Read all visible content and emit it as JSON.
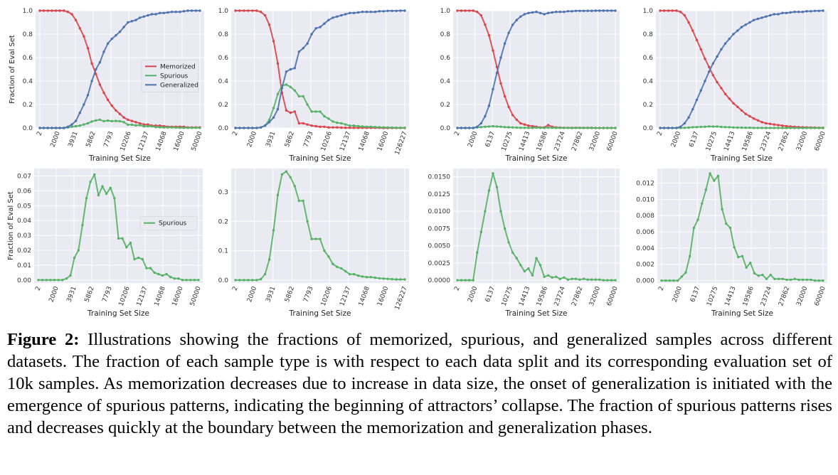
{
  "figure": {
    "label": "Figure 2:",
    "caption": " Illustrations showing the fractions of memorized, spurious, and generalized samples across different datasets. The fraction of each sample type is with respect to each data split and its corresponding evaluation set of 10k samples. As memorization decreases due to increase in data size, the onset of generalization is initiated with the emergence of spurious patterns, indicating the beginning of attractors’ collapse. The fraction of spurious patterns rises and decreases quickly at the boundary between the memorization and generalization phases."
  },
  "colors": {
    "memorized": "#d9444b",
    "spurious": "#55b165",
    "generalized": "#4c72b0",
    "panel_bg": "#eaeaf2",
    "grid": "#ffffff"
  },
  "chart_data": [
    {
      "type": "line",
      "position": "top-1",
      "xlabel": "Training Set Size",
      "ylabel": "Fraction of Eval Set",
      "ylim": [
        0,
        1
      ],
      "yticks": [
        "0.0",
        "0.2",
        "0.4",
        "0.6",
        "0.8",
        "1.0"
      ],
      "ytick_values": [
        0,
        0.2,
        0.4,
        0.6,
        0.8,
        1.0
      ],
      "xticks": [
        "2",
        "2000",
        "3931",
        "5862",
        "7793",
        "10206",
        "12137",
        "14068",
        "16000",
        "50000"
      ],
      "legend": [
        "Memorized",
        "Spurious",
        "Generalized"
      ],
      "legend_loc": "center-right",
      "series": [
        {
          "name": "Memorized",
          "values": [
            1,
            1,
            1,
            1,
            1,
            1,
            1,
            0.99,
            0.97,
            0.92,
            0.85,
            0.78,
            0.68,
            0.55,
            0.46,
            0.37,
            0.3,
            0.24,
            0.19,
            0.15,
            0.12,
            0.09,
            0.07,
            0.06,
            0.05,
            0.04,
            0.03,
            0.03,
            0.02,
            0.02,
            0.02,
            0.015,
            0.01,
            0.01,
            0.01,
            0.01,
            0.01,
            0.005,
            0.005,
            0.005,
            0.005
          ]
        },
        {
          "name": "Spurious",
          "values": [
            0,
            0,
            0,
            0,
            0,
            0,
            0,
            0.005,
            0.01,
            0.015,
            0.02,
            0.03,
            0.04,
            0.055,
            0.065,
            0.07,
            0.058,
            0.063,
            0.058,
            0.06,
            0.058,
            0.05,
            0.028,
            0.028,
            0.022,
            0.025,
            0.014,
            0.015,
            0.014,
            0.008,
            0.006,
            0.005,
            0.004,
            0.005,
            0.003,
            0.002,
            0.001,
            0.001,
            0.001,
            0.001,
            0.001
          ]
        },
        {
          "name": "Generalized",
          "values": [
            0,
            0,
            0,
            0,
            0,
            0,
            0,
            0.01,
            0.03,
            0.06,
            0.13,
            0.2,
            0.28,
            0.4,
            0.5,
            0.56,
            0.65,
            0.72,
            0.76,
            0.79,
            0.82,
            0.86,
            0.9,
            0.91,
            0.92,
            0.94,
            0.95,
            0.96,
            0.97,
            0.97,
            0.98,
            0.98,
            0.985,
            0.99,
            0.99,
            0.99,
            0.995,
            1,
            1,
            1,
            1
          ]
        }
      ]
    },
    {
      "type": "line",
      "position": "top-2",
      "xlabel": "Training Set Size",
      "ylabel": "",
      "ylim": [
        0,
        1
      ],
      "yticks": [
        "0.0",
        "0.2",
        "0.4",
        "0.6",
        "0.8",
        "1.0"
      ],
      "ytick_values": [
        0,
        0.2,
        0.4,
        0.6,
        0.8,
        1.0
      ],
      "xticks": [
        "2",
        "2000",
        "3931",
        "5862",
        "7793",
        "10206",
        "12137",
        "14068",
        "16000",
        "126227"
      ],
      "series": [
        {
          "name": "Memorized",
          "values": [
            1,
            1,
            1,
            1,
            1,
            1,
            0.99,
            0.96,
            0.88,
            0.74,
            0.55,
            0.3,
            0.15,
            0.13,
            0.14,
            0.04,
            0.04,
            0.03,
            0.02,
            0.015,
            0.01,
            0.01,
            0.005,
            0.005,
            0.005,
            0.003,
            0.002,
            0.002,
            0.001,
            0.001,
            0.001,
            0.001,
            0.001,
            0.001,
            0.001,
            0,
            0,
            0,
            0,
            0,
            0
          ]
        },
        {
          "name": "Spurious",
          "values": [
            0,
            0,
            0,
            0,
            0,
            0,
            0.005,
            0.02,
            0.07,
            0.17,
            0.29,
            0.36,
            0.37,
            0.35,
            0.32,
            0.27,
            0.27,
            0.2,
            0.14,
            0.14,
            0.14,
            0.1,
            0.08,
            0.055,
            0.045,
            0.04,
            0.03,
            0.02,
            0.02,
            0.015,
            0.012,
            0.01,
            0.01,
            0.008,
            0.006,
            0.005,
            0.004,
            0.003,
            0.002,
            0.002,
            0.002
          ]
        },
        {
          "name": "Generalized",
          "values": [
            0,
            0,
            0,
            0,
            0,
            0,
            0.005,
            0.02,
            0.05,
            0.09,
            0.16,
            0.34,
            0.48,
            0.5,
            0.51,
            0.65,
            0.68,
            0.72,
            0.8,
            0.85,
            0.86,
            0.89,
            0.92,
            0.94,
            0.95,
            0.96,
            0.97,
            0.98,
            0.98,
            0.985,
            0.99,
            0.99,
            0.99,
            0.99,
            0.995,
            0.995,
            0.998,
            0.998,
            0.998,
            1,
            1
          ]
        }
      ]
    },
    {
      "type": "line",
      "position": "top-3",
      "xlabel": "Training Set Size",
      "ylabel": "",
      "ylim": [
        0,
        1
      ],
      "yticks": [
        "0.0",
        "0.2",
        "0.4",
        "0.6",
        "0.8",
        "1.0"
      ],
      "ytick_values": [
        0,
        0.2,
        0.4,
        0.6,
        0.8,
        1.0
      ],
      "xticks": [
        "2",
        "2000",
        "6137",
        "10275",
        "14413",
        "19586",
        "23724",
        "27862",
        "32000",
        "60000"
      ],
      "series": [
        {
          "name": "Memorized",
          "values": [
            1,
            1,
            1,
            1,
            1,
            0.99,
            0.96,
            0.88,
            0.79,
            0.66,
            0.52,
            0.38,
            0.27,
            0.18,
            0.11,
            0.07,
            0.04,
            0.03,
            0.02,
            0.015,
            0.01,
            0.005,
            0.005,
            0.025,
            0.01,
            0.005,
            0.003,
            0.002,
            0.001,
            0.001,
            0.001,
            0.001,
            0.001,
            0.001,
            0.001,
            0,
            0,
            0,
            0,
            0,
            0
          ]
        },
        {
          "name": "Spurious",
          "values": [
            0,
            0,
            0,
            0,
            0,
            0.004,
            0.007,
            0.01,
            0.013,
            0.015,
            0.013,
            0.01,
            0.007,
            0.006,
            0.004,
            0.003,
            0.002,
            0.001,
            0.0015,
            0.0007,
            0.003,
            0.002,
            0.0005,
            0.003,
            0.002,
            0.0005,
            0.0006,
            0.0004,
            0.0006,
            0.0001,
            0.0004,
            0.0004,
            0.0001,
            0.0002,
            0.0002,
            0.0001,
            0.0001,
            0,
            0,
            0,
            0
          ]
        },
        {
          "name": "Generalized",
          "values": [
            0,
            0,
            0,
            0,
            0,
            0.01,
            0.04,
            0.1,
            0.19,
            0.33,
            0.47,
            0.6,
            0.72,
            0.81,
            0.88,
            0.92,
            0.95,
            0.97,
            0.98,
            0.985,
            0.99,
            0.98,
            0.97,
            0.98,
            0.985,
            0.99,
            0.99,
            0.99,
            0.995,
            0.995,
            0.998,
            0.998,
            0.998,
            0.999,
            0.999,
            1,
            1,
            1,
            1,
            1,
            1
          ]
        }
      ]
    },
    {
      "type": "line",
      "position": "top-4",
      "xlabel": "Training Set Size",
      "ylabel": "",
      "ylim": [
        0,
        1
      ],
      "yticks": [
        "0.0",
        "0.2",
        "0.4",
        "0.6",
        "0.8",
        "1.0"
      ],
      "ytick_values": [
        0,
        0.2,
        0.4,
        0.6,
        0.8,
        1.0
      ],
      "xticks": [
        "2",
        "2000",
        "6137",
        "10275",
        "14413",
        "19586",
        "23724",
        "27862",
        "32000",
        "60000"
      ],
      "series": [
        {
          "name": "Memorized",
          "values": [
            1,
            1,
            1,
            1,
            1,
            0.99,
            0.96,
            0.9,
            0.83,
            0.75,
            0.67,
            0.59,
            0.52,
            0.45,
            0.39,
            0.34,
            0.29,
            0.25,
            0.21,
            0.18,
            0.15,
            0.12,
            0.1,
            0.08,
            0.065,
            0.05,
            0.04,
            0.035,
            0.03,
            0.025,
            0.02,
            0.015,
            0.012,
            0.01,
            0.008,
            0.006,
            0.005,
            0.004,
            0.003,
            0.002,
            0.002
          ]
        },
        {
          "name": "Spurious",
          "values": [
            0,
            0,
            0,
            0,
            0,
            0.0005,
            0.001,
            0.003,
            0.0065,
            0.0075,
            0.0095,
            0.0112,
            0.0132,
            0.0123,
            0.0129,
            0.0088,
            0.007,
            0.0065,
            0.0041,
            0.0029,
            0.003,
            0.0016,
            0.0022,
            0.0009,
            0.0006,
            0.0007,
            0.0002,
            0.0007,
            0.0002,
            0.0002,
            0.0002,
            0.0001,
            0.0001,
            0.0002,
            0.0001,
            0.0001,
            0.0001,
            0.0001,
            0,
            0,
            0
          ]
        },
        {
          "name": "Generalized",
          "values": [
            0,
            0,
            0,
            0,
            0,
            0.01,
            0.04,
            0.09,
            0.16,
            0.24,
            0.32,
            0.4,
            0.48,
            0.55,
            0.61,
            0.67,
            0.72,
            0.76,
            0.8,
            0.83,
            0.86,
            0.88,
            0.9,
            0.92,
            0.93,
            0.94,
            0.95,
            0.96,
            0.97,
            0.97,
            0.98,
            0.98,
            0.985,
            0.99,
            0.99,
            0.99,
            0.995,
            0.995,
            0.998,
            0.998,
            1
          ]
        }
      ]
    },
    {
      "type": "line",
      "position": "bottom-1",
      "xlabel": "Training Set Size",
      "ylabel": "Fraction of Eval Set",
      "ylim": [
        -0.002,
        0.075
      ],
      "yticks": [
        "0.00",
        "0.01",
        "0.02",
        "0.03",
        "0.04",
        "0.05",
        "0.06",
        "0.07"
      ],
      "ytick_values": [
        0,
        0.01,
        0.02,
        0.03,
        0.04,
        0.05,
        0.06,
        0.07
      ],
      "xticks": [
        "2",
        "2000",
        "3931",
        "5862",
        "7793",
        "10206",
        "12137",
        "14068",
        "16000",
        "50000"
      ],
      "legend": [
        "Spurious"
      ],
      "legend_loc": "center-right",
      "series": [
        {
          "name": "Spurious",
          "values": [
            0,
            0,
            0,
            0,
            0,
            0,
            0,
            0.001,
            0.003,
            0.015,
            0.02,
            0.037,
            0.055,
            0.066,
            0.071,
            0.057,
            0.063,
            0.058,
            0.062,
            0.055,
            0.028,
            0.028,
            0.022,
            0.025,
            0.014,
            0.015,
            0.014,
            0.008,
            0.008,
            0.005,
            0.004,
            0.003,
            0.004,
            0.002,
            0.001,
            0.001,
            0,
            0,
            0,
            0,
            0
          ]
        }
      ]
    },
    {
      "type": "line",
      "position": "bottom-2",
      "xlabel": "Training Set Size",
      "ylabel": "",
      "ylim": [
        -0.01,
        0.38
      ],
      "yticks": [
        "0.0",
        "0.1",
        "0.2",
        "0.3"
      ],
      "ytick_values": [
        0,
        0.1,
        0.2,
        0.3
      ],
      "xticks": [
        "2",
        "2000",
        "3931",
        "5862",
        "7793",
        "10206",
        "12137",
        "14068",
        "16000",
        "126227"
      ],
      "series": [
        {
          "name": "Spurious",
          "values": [
            0,
            0,
            0,
            0,
            0,
            0,
            0.003,
            0.02,
            0.07,
            0.17,
            0.29,
            0.36,
            0.37,
            0.35,
            0.32,
            0.27,
            0.27,
            0.2,
            0.14,
            0.14,
            0.14,
            0.1,
            0.08,
            0.055,
            0.045,
            0.04,
            0.03,
            0.02,
            0.02,
            0.015,
            0.012,
            0.01,
            0.01,
            0.008,
            0.006,
            0.005,
            0.004,
            0.003,
            0.002,
            0.002,
            0.002
          ]
        }
      ]
    },
    {
      "type": "line",
      "position": "bottom-3",
      "xlabel": "Training Set Size",
      "ylabel": "",
      "ylim": [
        -0.0004,
        0.0162
      ],
      "yticks": [
        "0.0000",
        "0.0025",
        "0.0050",
        "0.0075",
        "0.0100",
        "0.0125",
        "0.0150"
      ],
      "ytick_values": [
        0,
        0.0025,
        0.005,
        0.0075,
        0.01,
        0.0125,
        0.015
      ],
      "xticks": [
        "2",
        "2000",
        "6137",
        "10275",
        "14413",
        "19586",
        "23724",
        "27862",
        "32000",
        "60000"
      ],
      "series": [
        {
          "name": "Spurious",
          "values": [
            0,
            0,
            0,
            0,
            0,
            0.004,
            0.007,
            0.01,
            0.013,
            0.0155,
            0.0135,
            0.01,
            0.0075,
            0.0055,
            0.004,
            0.0032,
            0.0022,
            0.0013,
            0.0017,
            0.0007,
            0.0032,
            0.0022,
            0.0005,
            0.0007,
            0.0004,
            0.0005,
            0.0002,
            0.0004,
            0.0001,
            0.0002,
            0.0002,
            0.0001,
            0.0002,
            0.0001,
            0.0001,
            0.0001,
            0.0001,
            0,
            0,
            0,
            0
          ]
        }
      ]
    },
    {
      "type": "line",
      "position": "bottom-4",
      "xlabel": "Training Set Size",
      "ylabel": "",
      "ylim": [
        -0.0003,
        0.0138
      ],
      "yticks": [
        "0.000",
        "0.002",
        "0.004",
        "0.006",
        "0.008",
        "0.010",
        "0.012"
      ],
      "ytick_values": [
        0,
        0.002,
        0.004,
        0.006,
        0.008,
        0.01,
        0.012
      ],
      "xticks": [
        "2",
        "2000",
        "6137",
        "10275",
        "14413",
        "19586",
        "23724",
        "27862",
        "32000",
        "60000"
      ],
      "series": [
        {
          "name": "Spurious",
          "values": [
            0,
            0,
            0,
            0,
            0,
            0.0005,
            0.001,
            0.003,
            0.0065,
            0.0075,
            0.0095,
            0.0112,
            0.0132,
            0.0123,
            0.0129,
            0.0088,
            0.007,
            0.0065,
            0.0041,
            0.0029,
            0.003,
            0.0016,
            0.0022,
            0.0009,
            0.0006,
            0.0007,
            0.0002,
            0.0007,
            0.0002,
            0.0002,
            0.0002,
            0.0001,
            0.0001,
            0.0002,
            0.0001,
            0.0001,
            0.0001,
            0.0001,
            0,
            0,
            0
          ]
        }
      ]
    }
  ]
}
